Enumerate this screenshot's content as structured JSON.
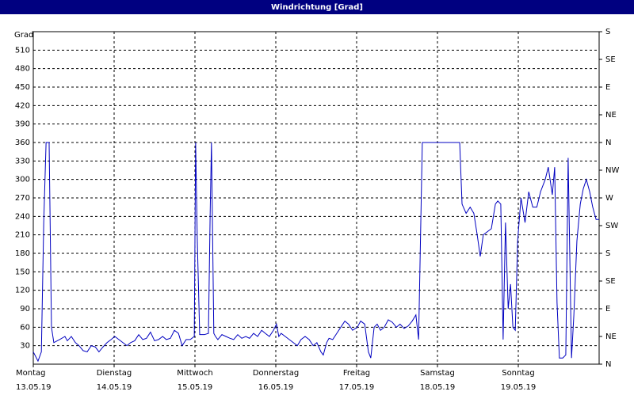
{
  "chart_data": {
    "type": "line",
    "title": "Windrichtung [Grad]",
    "y_label": "Grad",
    "xlim": [
      0,
      168
    ],
    "xticks": [
      {
        "value": 0,
        "label": "Montag"
      },
      {
        "value": 24,
        "label": "Dienstag"
      },
      {
        "value": 48,
        "label": "Mittwoch"
      },
      {
        "value": 72,
        "label": "Donnerstag"
      },
      {
        "value": 96,
        "label": "Freitag"
      },
      {
        "value": 120,
        "label": "Samstag"
      },
      {
        "value": 144,
        "label": "Sonntag"
      }
    ],
    "xtick_dates": [
      "13.05.19",
      "14.05.19",
      "15.05.19",
      "16.05.19",
      "17.05.19",
      "18.05.19",
      "19.05.19"
    ],
    "ylim": [
      0,
      540
    ],
    "yticks": [
      30,
      60,
      90,
      120,
      150,
      180,
      210,
      240,
      270,
      300,
      330,
      360,
      390,
      420,
      450,
      480,
      510
    ],
    "y2lim": [
      0,
      540
    ],
    "y2ticks": [
      {
        "value": 0,
        "label": "N"
      },
      {
        "value": 45,
        "label": "NE"
      },
      {
        "value": 90,
        "label": "E"
      },
      {
        "value": 135,
        "label": "SE"
      },
      {
        "value": 180,
        "label": "S"
      },
      {
        "value": 225,
        "label": "SW"
      },
      {
        "value": 270,
        "label": "W"
      },
      {
        "value": 315,
        "label": "NW"
      },
      {
        "value": 360,
        "label": "N"
      },
      {
        "value": 405,
        "label": "NE"
      },
      {
        "value": 450,
        "label": "E"
      },
      {
        "value": 495,
        "label": "SE"
      },
      {
        "value": 540,
        "label": "S"
      }
    ],
    "grid": true,
    "series": [
      {
        "color": "#0000c0",
        "x": [
          0,
          1.4,
          2.4,
          3.1,
          3.8,
          4.7,
          5.4,
          6.1,
          7.8,
          9.4,
          10.1,
          11.3,
          12.5,
          13.6,
          14.8,
          16.0,
          17.2,
          18.4,
          19.5,
          20.7,
          21.9,
          23.1,
          24.2,
          25.4,
          26.6,
          27.8,
          28.9,
          30.1,
          31.3,
          32.5,
          33.6,
          34.8,
          36.0,
          37.2,
          38.4,
          39.5,
          40.7,
          41.9,
          43.1,
          44.2,
          45.4,
          46.6,
          47.8,
          48.2,
          48.7,
          49.4,
          50.8,
          52.0,
          52.5,
          52.9,
          53.6,
          54.1,
          54.8,
          56.0,
          57.2,
          58.4,
          59.5,
          60.7,
          61.9,
          63.1,
          64.2,
          65.4,
          66.6,
          67.8,
          68.9,
          70.1,
          71.3,
          72.2,
          72.9,
          73.6,
          74.8,
          76.0,
          77.2,
          78.4,
          79.5,
          80.7,
          81.9,
          83.1,
          84.2,
          85.4,
          86.1,
          87.1,
          87.8,
          88.9,
          90.1,
          91.3,
          92.5,
          93.6,
          94.8,
          96.2,
          97.2,
          98.4,
          99.5,
          100.2,
          101.2,
          102.1,
          103.1,
          104.2,
          105.4,
          106.6,
          107.8,
          108.9,
          110.1,
          111.3,
          112.5,
          113.6,
          114.4,
          115.5,
          117.2,
          121.9,
          126.6,
          127.3,
          128.5,
          129.7,
          130.8,
          131.8,
          132.7,
          133.6,
          134.8,
          136.0,
          137.2,
          137.9,
          138.8,
          139.5,
          140.2,
          141.0,
          141.7,
          142.4,
          143.1,
          143.8,
          144.8,
          146.0,
          147.1,
          148.3,
          149.5,
          150.6,
          152.0,
          152.9,
          154.1,
          154.8,
          155.5,
          156.2,
          157.2,
          158.1,
          158.8,
          159.8,
          160.5,
          161.4,
          162.4,
          163.3,
          164.2,
          165.2,
          166.1,
          167.1,
          168
        ],
        "values": [
          20,
          5,
          20,
          230,
          360,
          360,
          60,
          35,
          40,
          45,
          38,
          45,
          35,
          30,
          22,
          20,
          30,
          28,
          20,
          28,
          35,
          40,
          45,
          40,
          35,
          30,
          35,
          38,
          48,
          40,
          42,
          52,
          38,
          40,
          45,
          40,
          42,
          55,
          50,
          30,
          40,
          40,
          45,
          360,
          200,
          48,
          48,
          50,
          240,
          360,
          50,
          45,
          40,
          48,
          45,
          42,
          40,
          48,
          42,
          45,
          42,
          50,
          45,
          55,
          50,
          45,
          55,
          65,
          45,
          50,
          45,
          40,
          35,
          30,
          40,
          45,
          40,
          30,
          35,
          20,
          15,
          35,
          42,
          40,
          50,
          60,
          70,
          65,
          55,
          60,
          70,
          65,
          20,
          10,
          60,
          65,
          55,
          60,
          72,
          68,
          60,
          65,
          58,
          62,
          70,
          80,
          40,
          360,
          360,
          360,
          360,
          260,
          245,
          255,
          245,
          210,
          175,
          210,
          215,
          220,
          260,
          265,
          260,
          40,
          230,
          90,
          130,
          60,
          55,
          200,
          270,
          230,
          280,
          255,
          255,
          280,
          300,
          320,
          275,
          320,
          100,
          10,
          10,
          15,
          335,
          10,
          80,
          200,
          260,
          285,
          300,
          280,
          255,
          235,
          235
        ]
      }
    ]
  }
}
